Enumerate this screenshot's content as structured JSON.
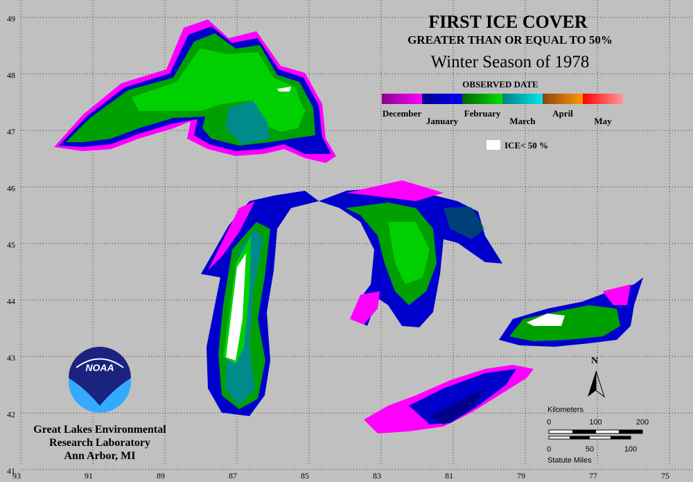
{
  "map": {
    "title": "FIRST ICE COVER",
    "subtitle": "GREATER THAN OR EQUAL TO 50%",
    "season": "Winter Season of 1978",
    "legend": {
      "title": "OBSERVED DATE",
      "months": [
        "December",
        "January",
        "February",
        "March",
        "April",
        "May"
      ],
      "ice_label": "ICE< 50 %"
    },
    "latitudes": [
      49,
      48,
      47,
      46,
      45,
      44,
      43,
      42,
      41
    ],
    "longitudes": [
      93,
      91,
      89,
      87,
      85,
      83,
      81,
      79,
      77,
      75
    ],
    "logo": "NOAA",
    "credit": [
      "Great Lakes Environmental",
      "Research Laboratory",
      "Ann Arbor, MI"
    ],
    "north": "N",
    "scale": {
      "km_title": "Kilometers",
      "km_ticks": [
        0,
        100,
        200
      ],
      "mile_ticks": [
        0,
        50,
        100
      ],
      "mile_title": "Statute Miles"
    }
  }
}
